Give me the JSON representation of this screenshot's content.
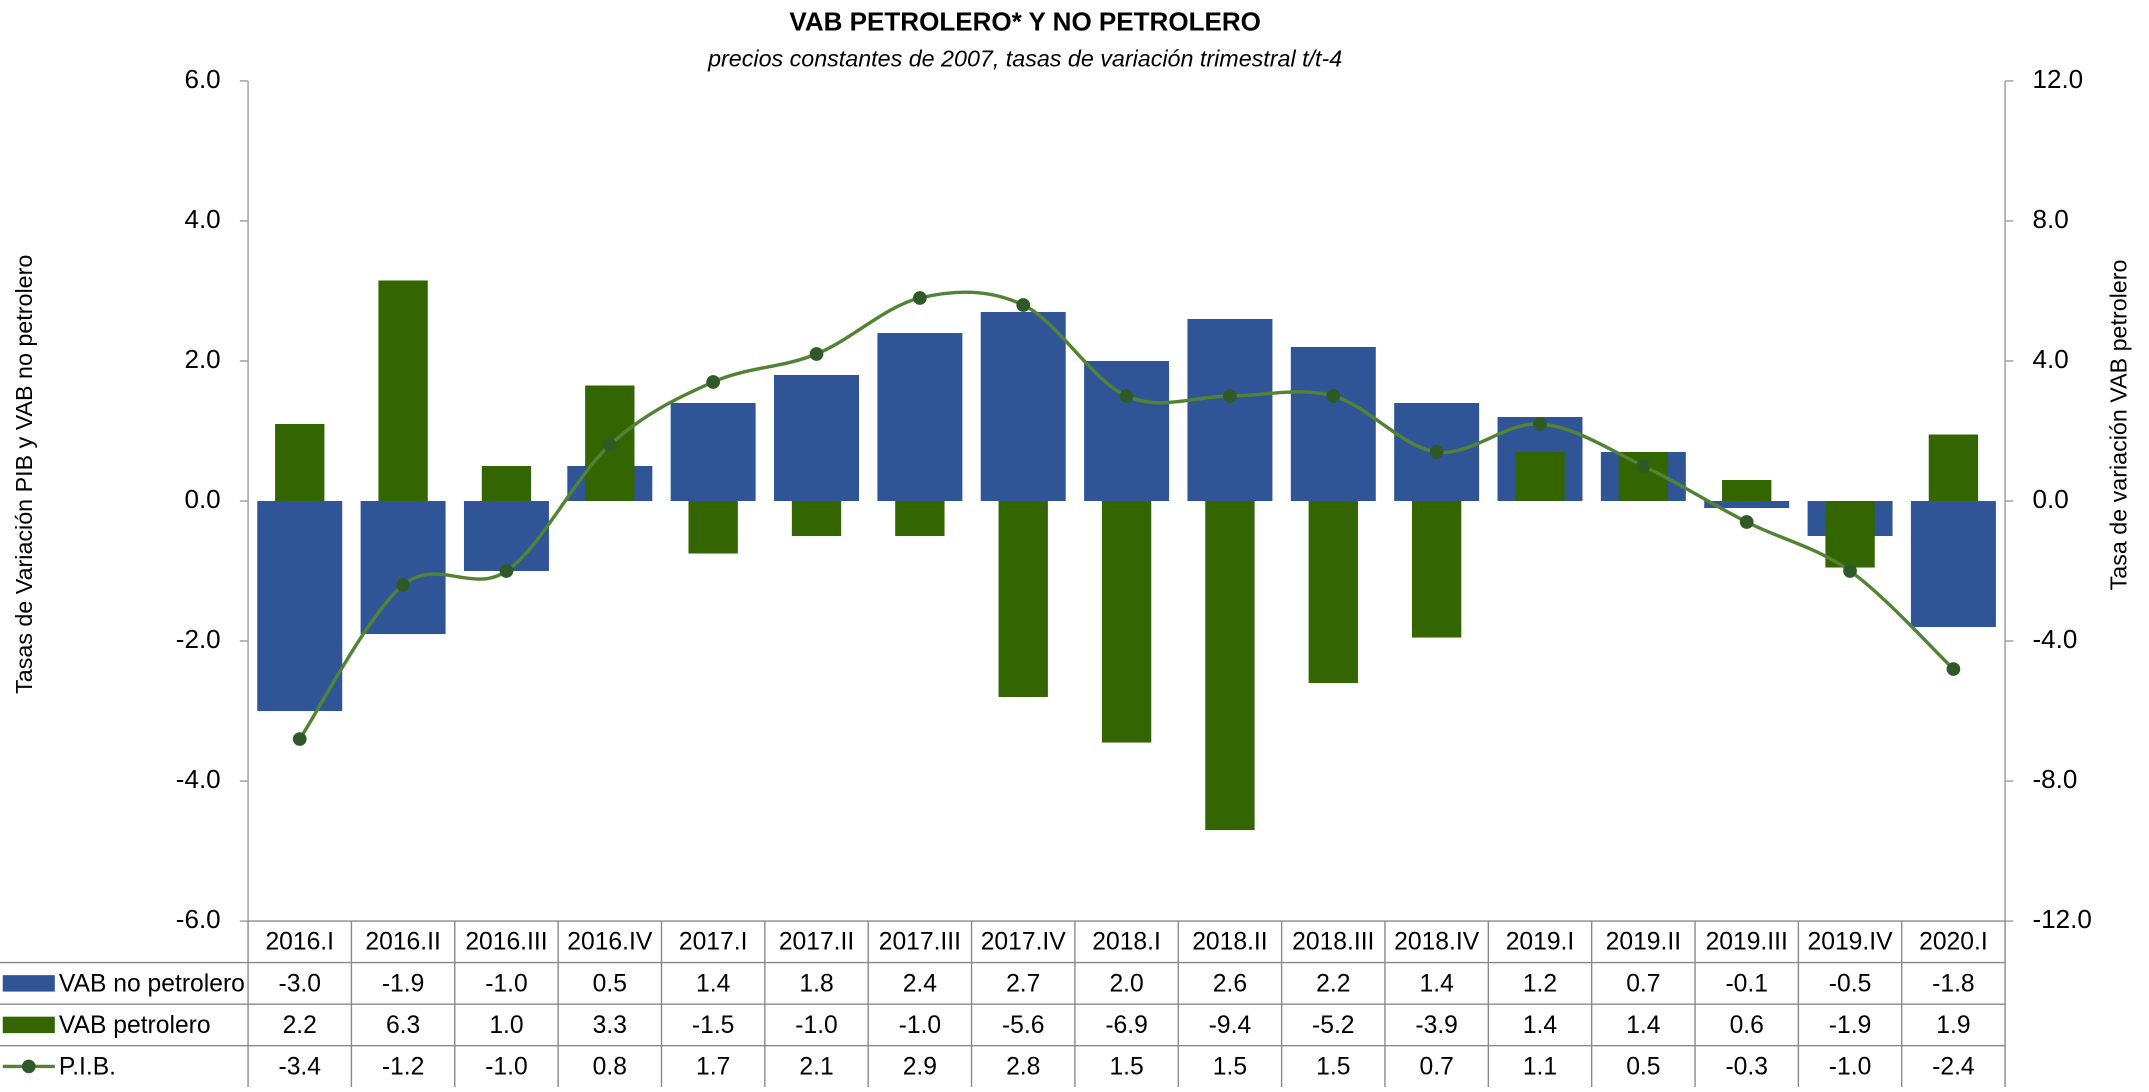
{
  "chart_data": {
    "type": "bar",
    "title": "VAB PETROLERO* Y NO PETROLERO",
    "subtitle": "precios constantes de 2007, tasas de variación trimestral t/t-4",
    "ylabel": "Tasas de Variación PIB y VAB no petrolero",
    "y2label": "Tasa de variación VAB petrolero",
    "categories": [
      "2016.I",
      "2016.II",
      "2016.III",
      "2016.IV",
      "2017.I",
      "2017.II",
      "2017.III",
      "2017.IV",
      "2018.I",
      "2018.II",
      "2018.III",
      "2018.IV",
      "2019.I",
      "2019.II",
      "2019.III",
      "2019.IV",
      "2020.I"
    ],
    "ylim": [
      -6,
      6
    ],
    "yticks": [
      {
        "value": -6,
        "label": "-6.0"
      },
      {
        "value": -4,
        "label": "-4.0"
      },
      {
        "value": -2,
        "label": "-2.0"
      },
      {
        "value": 0,
        "label": "0.0"
      },
      {
        "value": 2,
        "label": "2.0"
      },
      {
        "value": 4,
        "label": "4.0"
      },
      {
        "value": 6,
        "label": "6.0"
      }
    ],
    "y2lim": [
      -12,
      12
    ],
    "y2ticks": [
      {
        "value": -12,
        "label": "-12.0"
      },
      {
        "value": -8,
        "label": "-8.0"
      },
      {
        "value": -4,
        "label": "-4.0"
      },
      {
        "value": 0,
        "label": "0.0"
      },
      {
        "value": 4,
        "label": "4.0"
      },
      {
        "value": 8,
        "label": "8.0"
      },
      {
        "value": 12,
        "label": "12.0"
      }
    ],
    "series": [
      {
        "name": "VAB no petrolero",
        "type": "bar",
        "color": "#2f5597",
        "values": [
          -3.0,
          -1.9,
          -1.0,
          0.5,
          1.4,
          1.8,
          2.4,
          2.7,
          2.0,
          2.6,
          2.2,
          1.4,
          1.2,
          0.7,
          -0.1,
          -0.5,
          -1.8
        ],
        "value_labels": [
          "-3.0",
          "-1.9",
          "-1.0",
          "0.5",
          "1.4",
          "1.8",
          "2.4",
          "2.7",
          "2.0",
          "2.6",
          "2.2",
          "1.4",
          "1.2",
          "0.7",
          "-0.1",
          "-0.5",
          "-1.8"
        ]
      },
      {
        "name": "VAB petrolero",
        "type": "bar",
        "axis": "y2",
        "color": "#336600",
        "values": [
          2.2,
          6.3,
          1.0,
          3.3,
          -1.5,
          -1.0,
          -1.0,
          -5.6,
          -6.9,
          -9.4,
          -5.2,
          -3.9,
          1.4,
          1.4,
          0.6,
          -1.9,
          1.9
        ],
        "value_labels": [
          "2.2",
          "6.3",
          "1.0",
          "3.3",
          "-1.5",
          "-1.0",
          "-1.0",
          "-5.6",
          "-6.9",
          "-9.4",
          "-5.2",
          "-3.9",
          "1.4",
          "1.4",
          "0.6",
          "-1.9",
          "1.9"
        ]
      },
      {
        "name": "P.I.B.",
        "type": "line",
        "color": "#548235",
        "marker_color": "#2f5a27",
        "values": [
          -3.4,
          -1.2,
          -1.0,
          0.8,
          1.7,
          2.1,
          2.9,
          2.8,
          1.5,
          1.5,
          1.5,
          0.7,
          1.1,
          0.5,
          -0.3,
          -1.0,
          -2.4
        ],
        "value_labels": [
          "-3.4",
          "-1.2",
          "-1.0",
          "0.8",
          "1.7",
          "2.1",
          "2.9",
          "2.8",
          "1.5",
          "1.5",
          "1.5",
          "0.7",
          "1.1",
          "0.5",
          "-0.3",
          "-1.0",
          "-2.4"
        ]
      }
    ]
  }
}
